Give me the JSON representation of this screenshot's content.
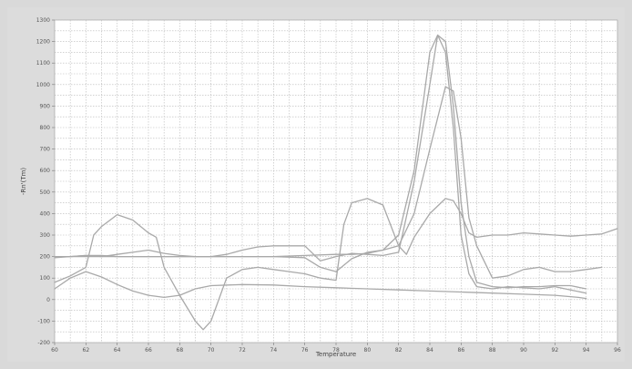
{
  "chart_data": {
    "type": "line",
    "title": "",
    "xlabel": "Temperature",
    "ylabel": "-Rn'(Tm)",
    "xlim": [
      60,
      96
    ],
    "ylim": [
      -200,
      1300
    ],
    "x_ticks": [
      60,
      62,
      64,
      66,
      68,
      70,
      72,
      74,
      76,
      78,
      80,
      82,
      84,
      86,
      88,
      90,
      92,
      94,
      96
    ],
    "y_ticks": [
      -200,
      -100,
      0,
      100,
      200,
      300,
      400,
      500,
      600,
      700,
      800,
      900,
      1000,
      1100,
      1200,
      1300
    ],
    "grid": true,
    "colors": {
      "background": "#dcdcdc",
      "plot_background": "#ffffff",
      "grid": "#b8b8b8",
      "line": "#a9a9a9"
    },
    "series": [
      {
        "points": [
          [
            60,
            50
          ],
          [
            61,
            100
          ],
          [
            62,
            130
          ],
          [
            63,
            105
          ],
          [
            64,
            70
          ],
          [
            65,
            40
          ],
          [
            66,
            20
          ],
          [
            67,
            10
          ],
          [
            68,
            20
          ],
          [
            69,
            50
          ],
          [
            70,
            65
          ],
          [
            72,
            70
          ],
          [
            74,
            68
          ],
          [
            76,
            60
          ],
          [
            78,
            55
          ],
          [
            80,
            50
          ],
          [
            82,
            45
          ],
          [
            84,
            40
          ],
          [
            86,
            35
          ],
          [
            88,
            30
          ],
          [
            90,
            25
          ],
          [
            92,
            20
          ],
          [
            93.5,
            10
          ],
          [
            94,
            5
          ]
        ]
      },
      {
        "points": [
          [
            60,
            200
          ],
          [
            62,
            200
          ],
          [
            64,
            200
          ],
          [
            66,
            200
          ],
          [
            68,
            200
          ],
          [
            70,
            200
          ],
          [
            72,
            200
          ],
          [
            74,
            200
          ],
          [
            76,
            205
          ],
          [
            78,
            210
          ],
          [
            79,
            210
          ],
          [
            80,
            215
          ],
          [
            81,
            230
          ],
          [
            82,
            300
          ],
          [
            83,
            600
          ],
          [
            84,
            1150
          ],
          [
            84.5,
            1230
          ],
          [
            85,
            1200
          ],
          [
            85.5,
            900
          ],
          [
            86,
            450
          ],
          [
            86.5,
            200
          ],
          [
            87,
            80
          ],
          [
            88,
            60
          ],
          [
            89,
            55
          ],
          [
            90,
            60
          ],
          [
            91,
            60
          ],
          [
            92,
            65
          ],
          [
            93,
            65
          ],
          [
            94,
            50
          ]
        ]
      },
      {
        "points": [
          [
            60,
            200
          ],
          [
            61,
            200
          ],
          [
            62,
            205
          ],
          [
            63,
            200
          ],
          [
            64,
            210
          ],
          [
            65,
            220
          ],
          [
            66,
            230
          ],
          [
            67,
            215
          ],
          [
            68,
            205
          ],
          [
            69,
            200
          ],
          [
            70,
            200
          ],
          [
            71,
            210
          ],
          [
            72,
            230
          ],
          [
            73,
            245
          ],
          [
            74,
            250
          ],
          [
            75,
            250
          ],
          [
            76,
            250
          ],
          [
            77,
            180
          ],
          [
            78,
            200
          ],
          [
            79,
            215
          ],
          [
            80,
            210
          ],
          [
            81,
            205
          ],
          [
            82,
            220
          ],
          [
            83,
            550
          ],
          [
            84,
            1000
          ],
          [
            84.5,
            1230
          ],
          [
            85,
            1150
          ],
          [
            85.5,
            800
          ],
          [
            86,
            300
          ],
          [
            86.5,
            120
          ],
          [
            87,
            60
          ],
          [
            88,
            50
          ],
          [
            89,
            60
          ],
          [
            90,
            55
          ],
          [
            91,
            50
          ],
          [
            92,
            60
          ],
          [
            93,
            45
          ],
          [
            94,
            30
          ]
        ]
      },
      {
        "points": [
          [
            60,
            195
          ],
          [
            61,
            200
          ],
          [
            62,
            205
          ],
          [
            63,
            205
          ],
          [
            64,
            200
          ],
          [
            66,
            200
          ],
          [
            68,
            200
          ],
          [
            70,
            200
          ],
          [
            72,
            200
          ],
          [
            74,
            200
          ],
          [
            76,
            195
          ],
          [
            77,
            150
          ],
          [
            78,
            130
          ],
          [
            79,
            190
          ],
          [
            80,
            220
          ],
          [
            81,
            230
          ],
          [
            82,
            250
          ],
          [
            83,
            400
          ],
          [
            84,
            700
          ],
          [
            85,
            990
          ],
          [
            85.5,
            970
          ],
          [
            86,
            750
          ],
          [
            86.5,
            380
          ],
          [
            87,
            250
          ],
          [
            88,
            100
          ],
          [
            89,
            110
          ],
          [
            90,
            140
          ],
          [
            91,
            150
          ],
          [
            92,
            130
          ],
          [
            93,
            130
          ],
          [
            94,
            140
          ],
          [
            95,
            150
          ]
        ]
      },
      {
        "points": [
          [
            60,
            80
          ],
          [
            61,
            110
          ],
          [
            62,
            150
          ],
          [
            62.5,
            300
          ],
          [
            63,
            340
          ],
          [
            64,
            395
          ],
          [
            65,
            370
          ],
          [
            66,
            310
          ],
          [
            66.5,
            290
          ],
          [
            67,
            150
          ],
          [
            68,
            20
          ],
          [
            69,
            -100
          ],
          [
            69.5,
            -140
          ],
          [
            70,
            -100
          ],
          [
            71,
            100
          ],
          [
            72,
            140
          ],
          [
            73,
            150
          ],
          [
            74,
            140
          ],
          [
            75,
            130
          ],
          [
            76,
            120
          ],
          [
            77,
            100
          ],
          [
            78,
            90
          ],
          [
            78.5,
            350
          ],
          [
            79,
            450
          ],
          [
            80,
            470
          ],
          [
            81,
            440
          ],
          [
            82,
            250
          ],
          [
            82.5,
            210
          ],
          [
            83,
            290
          ],
          [
            84,
            400
          ],
          [
            85,
            470
          ],
          [
            85.5,
            460
          ],
          [
            86,
            400
          ],
          [
            86.5,
            310
          ],
          [
            87,
            290
          ],
          [
            88,
            300
          ],
          [
            89,
            300
          ],
          [
            90,
            310
          ],
          [
            91,
            305
          ],
          [
            92,
            300
          ],
          [
            93,
            295
          ],
          [
            94,
            300
          ],
          [
            95,
            305
          ],
          [
            96,
            330
          ]
        ]
      }
    ]
  }
}
